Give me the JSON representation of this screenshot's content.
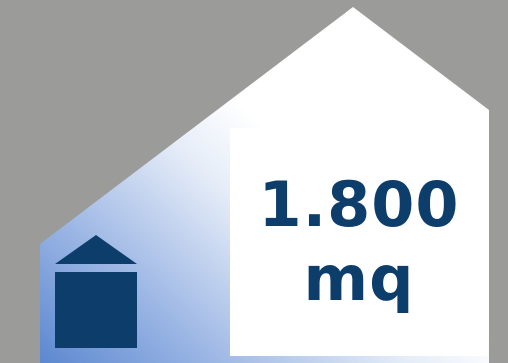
{
  "area": {
    "value": "1.800",
    "unit": "mq"
  },
  "colors": {
    "background": "#9b9b99",
    "house_fill": "#ffffff",
    "gradient_blue": "#5c88d0",
    "panel": "#ffffff",
    "text_and_icon": "#0c3d6b"
  },
  "icons": {
    "small_house": "house-icon"
  }
}
